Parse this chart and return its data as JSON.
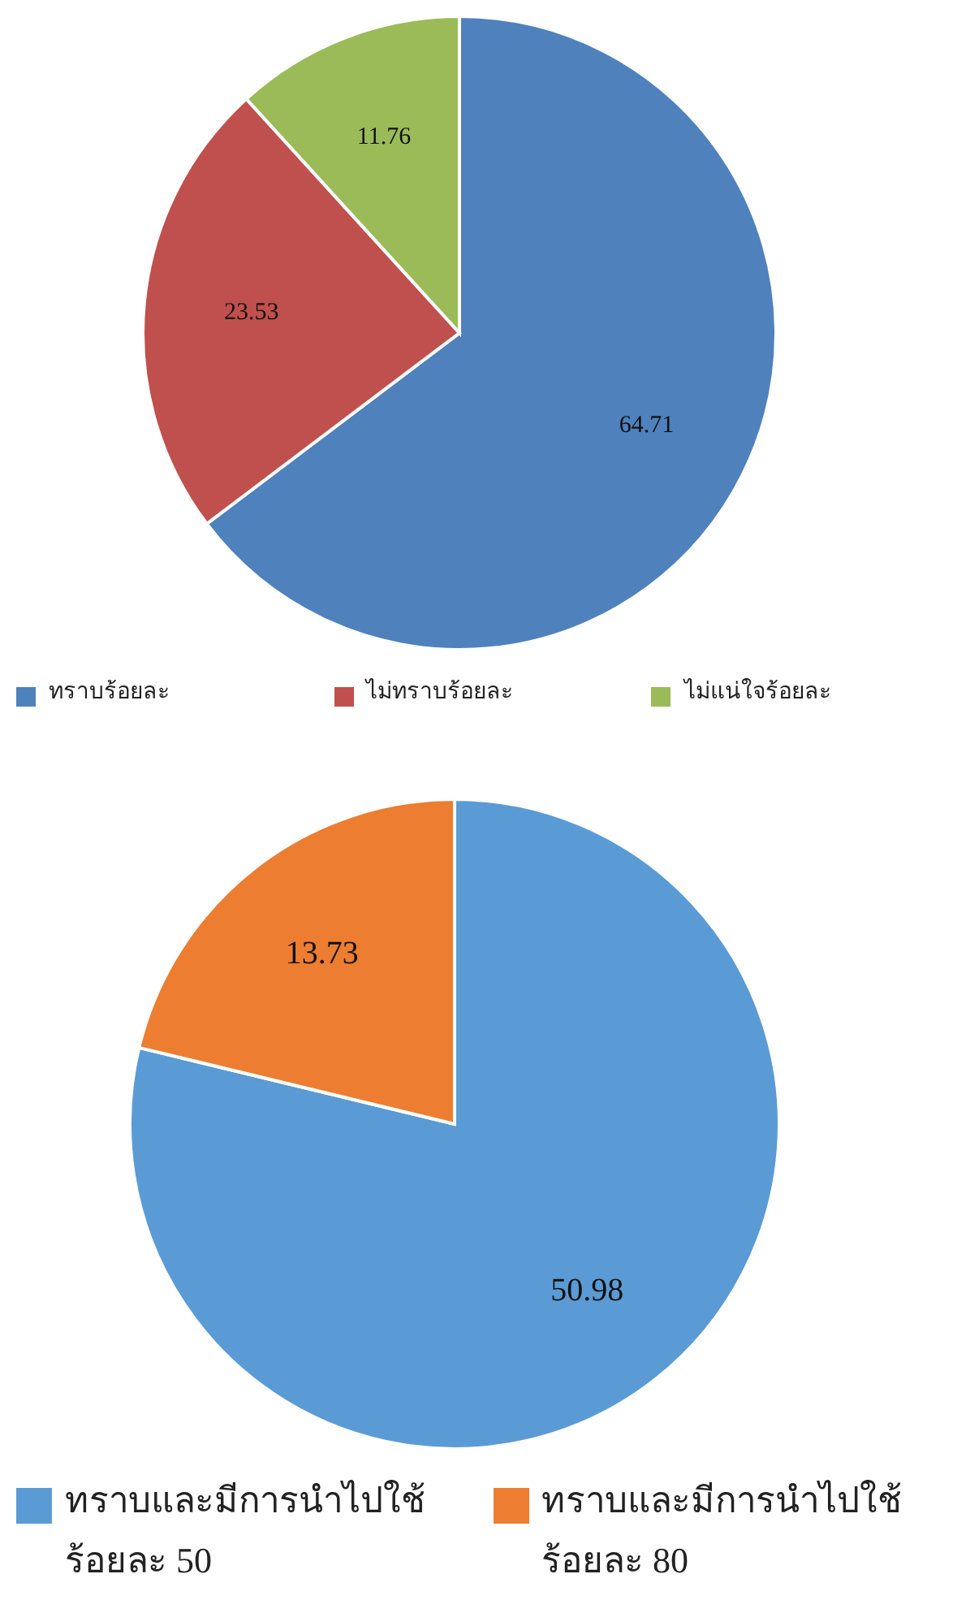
{
  "chart_data": [
    {
      "type": "pie",
      "categories": [
        "ทราบร้อยละ",
        "ไม่ทราบร้อยละ",
        "ไม่แน่ใจร้อยละ"
      ],
      "values": [
        64.71,
        23.53,
        11.76
      ],
      "colors": [
        "#4f81bd",
        "#c0504d",
        "#9bbb59"
      ],
      "data_labels": true,
      "legend": "bottom"
    },
    {
      "type": "pie",
      "categories": [
        "ทราบและมีการนำไปใช้ร้อยละ 50",
        "ทราบและมีการนำไปใช้ร้อยละ 80"
      ],
      "values": [
        50.98,
        13.73
      ],
      "colors": [
        "#5b9bd5",
        "#ed7d31"
      ],
      "data_labels": true,
      "legend": "bottom"
    }
  ]
}
